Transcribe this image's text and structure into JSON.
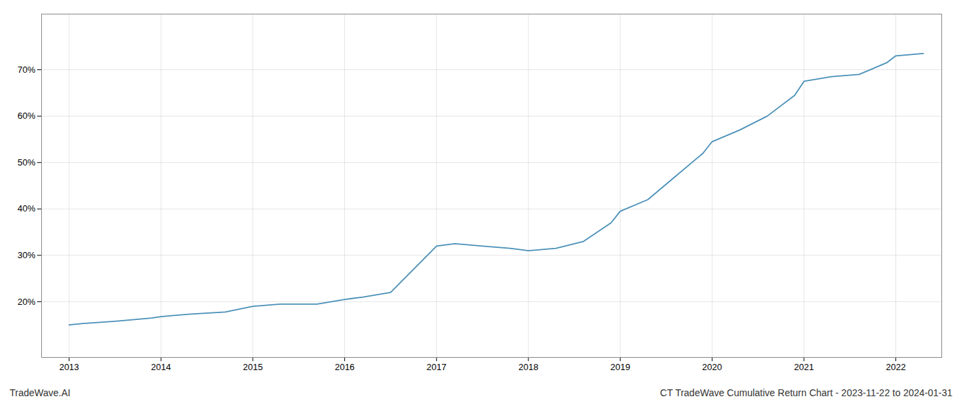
{
  "chart_data": {
    "type": "line",
    "title": "CT TradeWave Cumulative Return Chart - 2023-11-22 to 2024-01-31",
    "annotations": [
      "TradeWave.AI"
    ],
    "x": [
      2013.0,
      2013.15,
      2013.5,
      2013.9,
      2014.0,
      2014.3,
      2014.7,
      2015.0,
      2015.3,
      2015.7,
      2016.0,
      2016.2,
      2016.5,
      2016.8,
      2017.0,
      2017.2,
      2017.5,
      2017.8,
      2018.0,
      2018.3,
      2018.6,
      2018.9,
      2019.0,
      2019.3,
      2019.6,
      2019.9,
      2020.0,
      2020.3,
      2020.6,
      2020.9,
      2021.0,
      2021.3,
      2021.6,
      2021.9,
      2022.0,
      2022.3
    ],
    "values": [
      15.0,
      15.3,
      15.8,
      16.5,
      16.8,
      17.3,
      17.8,
      19.0,
      19.5,
      19.5,
      20.5,
      21.0,
      22.0,
      28.0,
      32.0,
      32.5,
      32.0,
      31.5,
      31.0,
      31.5,
      33.0,
      37.0,
      39.5,
      42.0,
      47.0,
      52.0,
      54.5,
      57.0,
      60.0,
      64.5,
      67.5,
      68.5,
      69.0,
      71.5,
      73.0,
      73.5
    ],
    "color": "#4a90b8",
    "xlim": [
      2012.7,
      2022.5
    ],
    "xticks": [
      2013,
      2014,
      2015,
      2016,
      2017,
      2018,
      2019,
      2020,
      2021,
      2022
    ],
    "ylim": [
      8,
      82
    ],
    "yticks": [
      {
        "value": 20,
        "label": "20%"
      },
      {
        "value": 30,
        "label": "30%"
      },
      {
        "value": 40,
        "label": "40%"
      },
      {
        "value": 50,
        "label": "50%"
      },
      {
        "value": 60,
        "label": "60%"
      },
      {
        "value": 70,
        "label": "70%"
      }
    ],
    "grid": true
  }
}
